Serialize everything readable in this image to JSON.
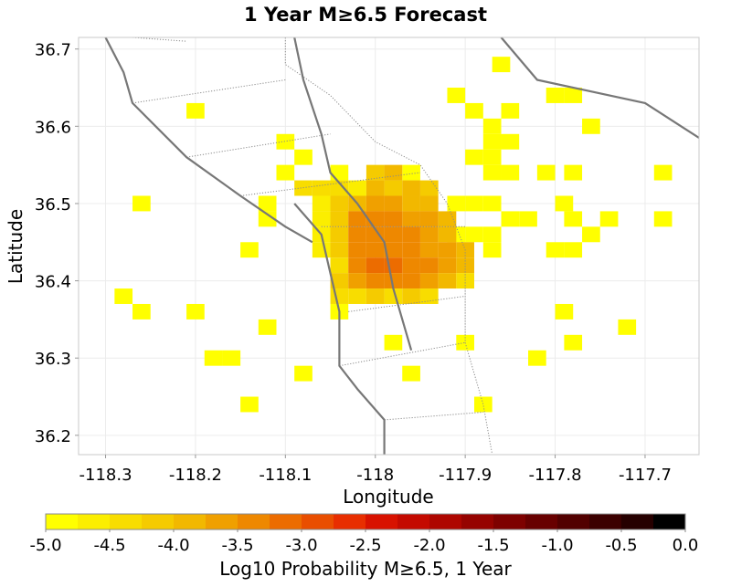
{
  "chart_data": {
    "type": "heatmap",
    "title": "1 Year M≥6.5 Forecast",
    "xlabel": "Longitude",
    "ylabel": "Latitude",
    "xlim": [
      -118.33,
      -117.64
    ],
    "ylim": [
      36.175,
      36.715
    ],
    "x_ticks": [
      -118.3,
      -118.2,
      -118.1,
      -118,
      -117.9,
      -117.8,
      -117.7
    ],
    "x_tick_labels": [
      "-118.3",
      "-118.2",
      "-118.1",
      "-118",
      "-117.9",
      "-117.8",
      "-117.7"
    ],
    "y_ticks": [
      36.2,
      36.3,
      36.4,
      36.5,
      36.6,
      36.7
    ],
    "y_tick_labels": [
      "36.2",
      "36.3",
      "36.4",
      "36.5",
      "36.6",
      "36.7"
    ],
    "grid": true,
    "cell_size_deg": 0.02,
    "cells": [
      [
        -117.86,
        36.68,
        -4.9
      ],
      [
        -117.91,
        36.64,
        -4.9
      ],
      [
        -117.8,
        36.64,
        -4.9
      ],
      [
        -117.78,
        36.64,
        -4.9
      ],
      [
        -118.2,
        36.62,
        -4.9
      ],
      [
        -117.89,
        36.62,
        -4.9
      ],
      [
        -117.85,
        36.62,
        -4.9
      ],
      [
        -117.87,
        36.6,
        -4.9
      ],
      [
        -117.76,
        36.6,
        -4.9
      ],
      [
        -118.1,
        36.58,
        -4.9
      ],
      [
        -117.87,
        36.58,
        -4.9
      ],
      [
        -117.85,
        36.58,
        -4.9
      ],
      [
        -118.08,
        36.56,
        -4.9
      ],
      [
        -117.89,
        36.56,
        -4.9
      ],
      [
        -117.87,
        36.56,
        -4.9
      ],
      [
        -118.1,
        36.54,
        -4.9
      ],
      [
        -118.04,
        36.54,
        -4.9
      ],
      [
        -117.96,
        36.54,
        -4.9
      ],
      [
        -117.87,
        36.54,
        -4.9
      ],
      [
        -117.85,
        36.54,
        -4.9
      ],
      [
        -117.81,
        36.54,
        -4.9
      ],
      [
        -117.78,
        36.54,
        -4.9
      ],
      [
        -117.68,
        36.54,
        -4.9
      ],
      [
        -118.26,
        36.5,
        -4.9
      ],
      [
        -118.12,
        36.5,
        -4.9
      ],
      [
        -117.91,
        36.5,
        -4.9
      ],
      [
        -117.89,
        36.5,
        -4.9
      ],
      [
        -117.87,
        36.5,
        -4.9
      ],
      [
        -117.79,
        36.5,
        -4.9
      ],
      [
        -118.12,
        36.48,
        -4.9
      ],
      [
        -117.85,
        36.48,
        -4.9
      ],
      [
        -117.83,
        36.48,
        -4.9
      ],
      [
        -117.78,
        36.48,
        -4.9
      ],
      [
        -117.74,
        36.48,
        -4.9
      ],
      [
        -117.68,
        36.48,
        -4.9
      ],
      [
        -117.91,
        36.46,
        -4.9
      ],
      [
        -117.89,
        36.46,
        -4.9
      ],
      [
        -117.87,
        36.46,
        -4.9
      ],
      [
        -117.76,
        36.46,
        -4.9
      ],
      [
        -118.14,
        36.44,
        -4.9
      ],
      [
        -117.87,
        36.44,
        -4.9
      ],
      [
        -117.8,
        36.44,
        -4.9
      ],
      [
        -117.78,
        36.44,
        -4.9
      ],
      [
        -118.28,
        36.38,
        -4.9
      ],
      [
        -118.26,
        36.36,
        -4.9
      ],
      [
        -118.2,
        36.36,
        -4.9
      ],
      [
        -118.04,
        36.36,
        -4.9
      ],
      [
        -117.79,
        36.36,
        -4.9
      ],
      [
        -118.12,
        36.34,
        -4.9
      ],
      [
        -117.72,
        36.34,
        -4.9
      ],
      [
        -117.98,
        36.32,
        -4.9
      ],
      [
        -117.9,
        36.32,
        -4.9
      ],
      [
        -117.78,
        36.32,
        -4.9
      ],
      [
        -118.18,
        36.3,
        -4.9
      ],
      [
        -118.16,
        36.3,
        -4.9
      ],
      [
        -117.82,
        36.3,
        -4.9
      ],
      [
        -118.08,
        36.28,
        -4.9
      ],
      [
        -117.96,
        36.28,
        -4.9
      ],
      [
        -118.14,
        36.24,
        -4.9
      ],
      [
        -117.88,
        36.24,
        -4.9
      ],
      [
        -118.02,
        36.52,
        -4.7
      ],
      [
        -118.08,
        36.52,
        -4.5
      ],
      [
        -118.06,
        36.52,
        -4.5
      ],
      [
        -118.04,
        36.52,
        -4.3
      ],
      [
        -117.98,
        36.52,
        -4.1
      ],
      [
        -118.0,
        36.54,
        -4.1
      ],
      [
        -117.98,
        36.54,
        -3.9
      ],
      [
        -117.96,
        36.52,
        -3.9
      ],
      [
        -117.94,
        36.52,
        -4.1
      ],
      [
        -118.0,
        36.52,
        -3.9
      ],
      [
        -118.06,
        36.5,
        -4.7
      ],
      [
        -118.04,
        36.5,
        -4.1
      ],
      [
        -118.02,
        36.5,
        -3.9
      ],
      [
        -118.0,
        36.5,
        -3.7
      ],
      [
        -117.98,
        36.5,
        -3.7
      ],
      [
        -117.96,
        36.5,
        -3.9
      ],
      [
        -117.94,
        36.5,
        -3.9
      ],
      [
        -118.06,
        36.48,
        -4.7
      ],
      [
        -118.04,
        36.48,
        -4.1
      ],
      [
        -118.02,
        36.48,
        -3.5
      ],
      [
        -118.0,
        36.48,
        -3.5
      ],
      [
        -117.98,
        36.48,
        -3.5
      ],
      [
        -117.96,
        36.48,
        -3.7
      ],
      [
        -117.94,
        36.48,
        -3.7
      ],
      [
        -117.92,
        36.48,
        -3.9
      ],
      [
        -118.06,
        36.46,
        -4.7
      ],
      [
        -118.04,
        36.46,
        -4.1
      ],
      [
        -118.02,
        36.46,
        -3.5
      ],
      [
        -118.0,
        36.46,
        -3.3
      ],
      [
        -117.98,
        36.46,
        -3.3
      ],
      [
        -117.96,
        36.46,
        -3.5
      ],
      [
        -117.94,
        36.46,
        -3.7
      ],
      [
        -117.92,
        36.46,
        -3.9
      ],
      [
        -118.06,
        36.44,
        -4.7
      ],
      [
        -118.04,
        36.44,
        -4.1
      ],
      [
        -118.02,
        36.44,
        -3.3
      ],
      [
        -118.0,
        36.44,
        -3.3
      ],
      [
        -117.98,
        36.44,
        -3.5
      ],
      [
        -117.96,
        36.44,
        -3.5
      ],
      [
        -117.94,
        36.44,
        -3.7
      ],
      [
        -117.92,
        36.44,
        -3.7
      ],
      [
        -117.9,
        36.44,
        -3.9
      ],
      [
        -118.04,
        36.42,
        -4.3
      ],
      [
        -118.02,
        36.42,
        -3.5
      ],
      [
        -118.0,
        36.42,
        -3.1
      ],
      [
        -117.98,
        36.42,
        -3.1
      ],
      [
        -117.96,
        36.42,
        -3.3
      ],
      [
        -117.94,
        36.42,
        -3.5
      ],
      [
        -117.92,
        36.42,
        -3.7
      ],
      [
        -117.9,
        36.42,
        -3.9
      ],
      [
        -118.04,
        36.4,
        -4.1
      ],
      [
        -118.02,
        36.4,
        -3.7
      ],
      [
        -118.0,
        36.4,
        -3.5
      ],
      [
        -117.98,
        36.4,
        -3.3
      ],
      [
        -117.96,
        36.4,
        -3.5
      ],
      [
        -117.94,
        36.4,
        -3.7
      ],
      [
        -117.92,
        36.4,
        -3.9
      ],
      [
        -117.9,
        36.4,
        -4.5
      ],
      [
        -118.04,
        36.38,
        -4.5
      ],
      [
        -118.02,
        36.38,
        -4.3
      ],
      [
        -118.0,
        36.38,
        -4.1
      ],
      [
        -117.98,
        36.38,
        -4.3
      ],
      [
        -117.96,
        36.38,
        -4.1
      ],
      [
        -117.94,
        36.38,
        -4.3
      ]
    ],
    "faults_solid": [
      [
        [
          -118.3,
          36.715
        ],
        [
          -118.28,
          36.67
        ],
        [
          -118.27,
          36.63
        ],
        [
          -118.21,
          36.56
        ],
        [
          -118.15,
          36.51
        ],
        [
          -118.1,
          36.47
        ],
        [
          -118.07,
          36.45
        ]
      ],
      [
        [
          -117.86,
          36.715
        ],
        [
          -117.82,
          36.66
        ],
        [
          -117.7,
          36.63
        ],
        [
          -117.66,
          36.6
        ],
        [
          -117.64,
          36.585
        ]
      ],
      [
        [
          -118.09,
          36.715
        ],
        [
          -118.08,
          36.66
        ],
        [
          -118.06,
          36.59
        ],
        [
          -118.05,
          36.54
        ],
        [
          -118.02,
          36.5
        ],
        [
          -117.99,
          36.45
        ],
        [
          -117.98,
          36.39
        ],
        [
          -117.96,
          36.31
        ]
      ],
      [
        [
          -118.09,
          36.5
        ],
        [
          -118.06,
          36.46
        ],
        [
          -118.05,
          36.41
        ],
        [
          -118.04,
          36.36
        ],
        [
          -118.04,
          36.29
        ],
        [
          -118.02,
          36.26
        ],
        [
          -117.99,
          36.22
        ],
        [
          -117.99,
          36.175
        ]
      ]
    ],
    "faults_dotted": [
      [
        [
          -118.27,
          36.715
        ],
        [
          -118.21,
          36.71
        ]
      ],
      [
        [
          -118.27,
          36.63
        ],
        [
          -118.1,
          36.66
        ]
      ],
      [
        [
          -118.21,
          36.56
        ],
        [
          -118.05,
          36.59
        ]
      ],
      [
        [
          -118.15,
          36.51
        ],
        [
          -117.95,
          36.54
        ]
      ],
      [
        [
          -118.1,
          36.715
        ],
        [
          -118.1,
          36.68
        ],
        [
          -118.05,
          36.64
        ],
        [
          -118.0,
          36.58
        ],
        [
          -117.95,
          36.55
        ],
        [
          -117.92,
          36.5
        ],
        [
          -117.9,
          36.44
        ],
        [
          -117.9,
          36.38
        ],
        [
          -117.9,
          36.32
        ],
        [
          -117.88,
          36.24
        ],
        [
          -117.87,
          36.175
        ]
      ],
      [
        [
          -118.06,
          36.47
        ],
        [
          -117.9,
          36.47
        ]
      ],
      [
        [
          -118.03,
          36.36
        ],
        [
          -117.9,
          36.38
        ]
      ],
      [
        [
          -118.04,
          36.29
        ],
        [
          -117.9,
          36.32
        ]
      ],
      [
        [
          -117.99,
          36.22
        ],
        [
          -117.88,
          36.23
        ]
      ]
    ],
    "colorbar": {
      "label": "Log10 Probability M≥6.5, 1 Year",
      "min": -5.0,
      "max": 0.0,
      "tick_labels": [
        "-5.0",
        "-4.5",
        "-4.0",
        "-3.5",
        "-3.0",
        "-2.5",
        "-2.0",
        "-1.5",
        "-1.0",
        "-0.5",
        "0.0"
      ],
      "colors": [
        "#ffff00",
        "#fbee00",
        "#f8dd00",
        "#f5cb00",
        "#f2b800",
        "#f0a000",
        "#ee8800",
        "#ec6c00",
        "#e94e00",
        "#e82e00",
        "#d81200",
        "#c40a00",
        "#ae0600",
        "#960300",
        "#7e0100",
        "#680000",
        "#520000",
        "#3c0000",
        "#260000",
        "#000000"
      ]
    }
  }
}
